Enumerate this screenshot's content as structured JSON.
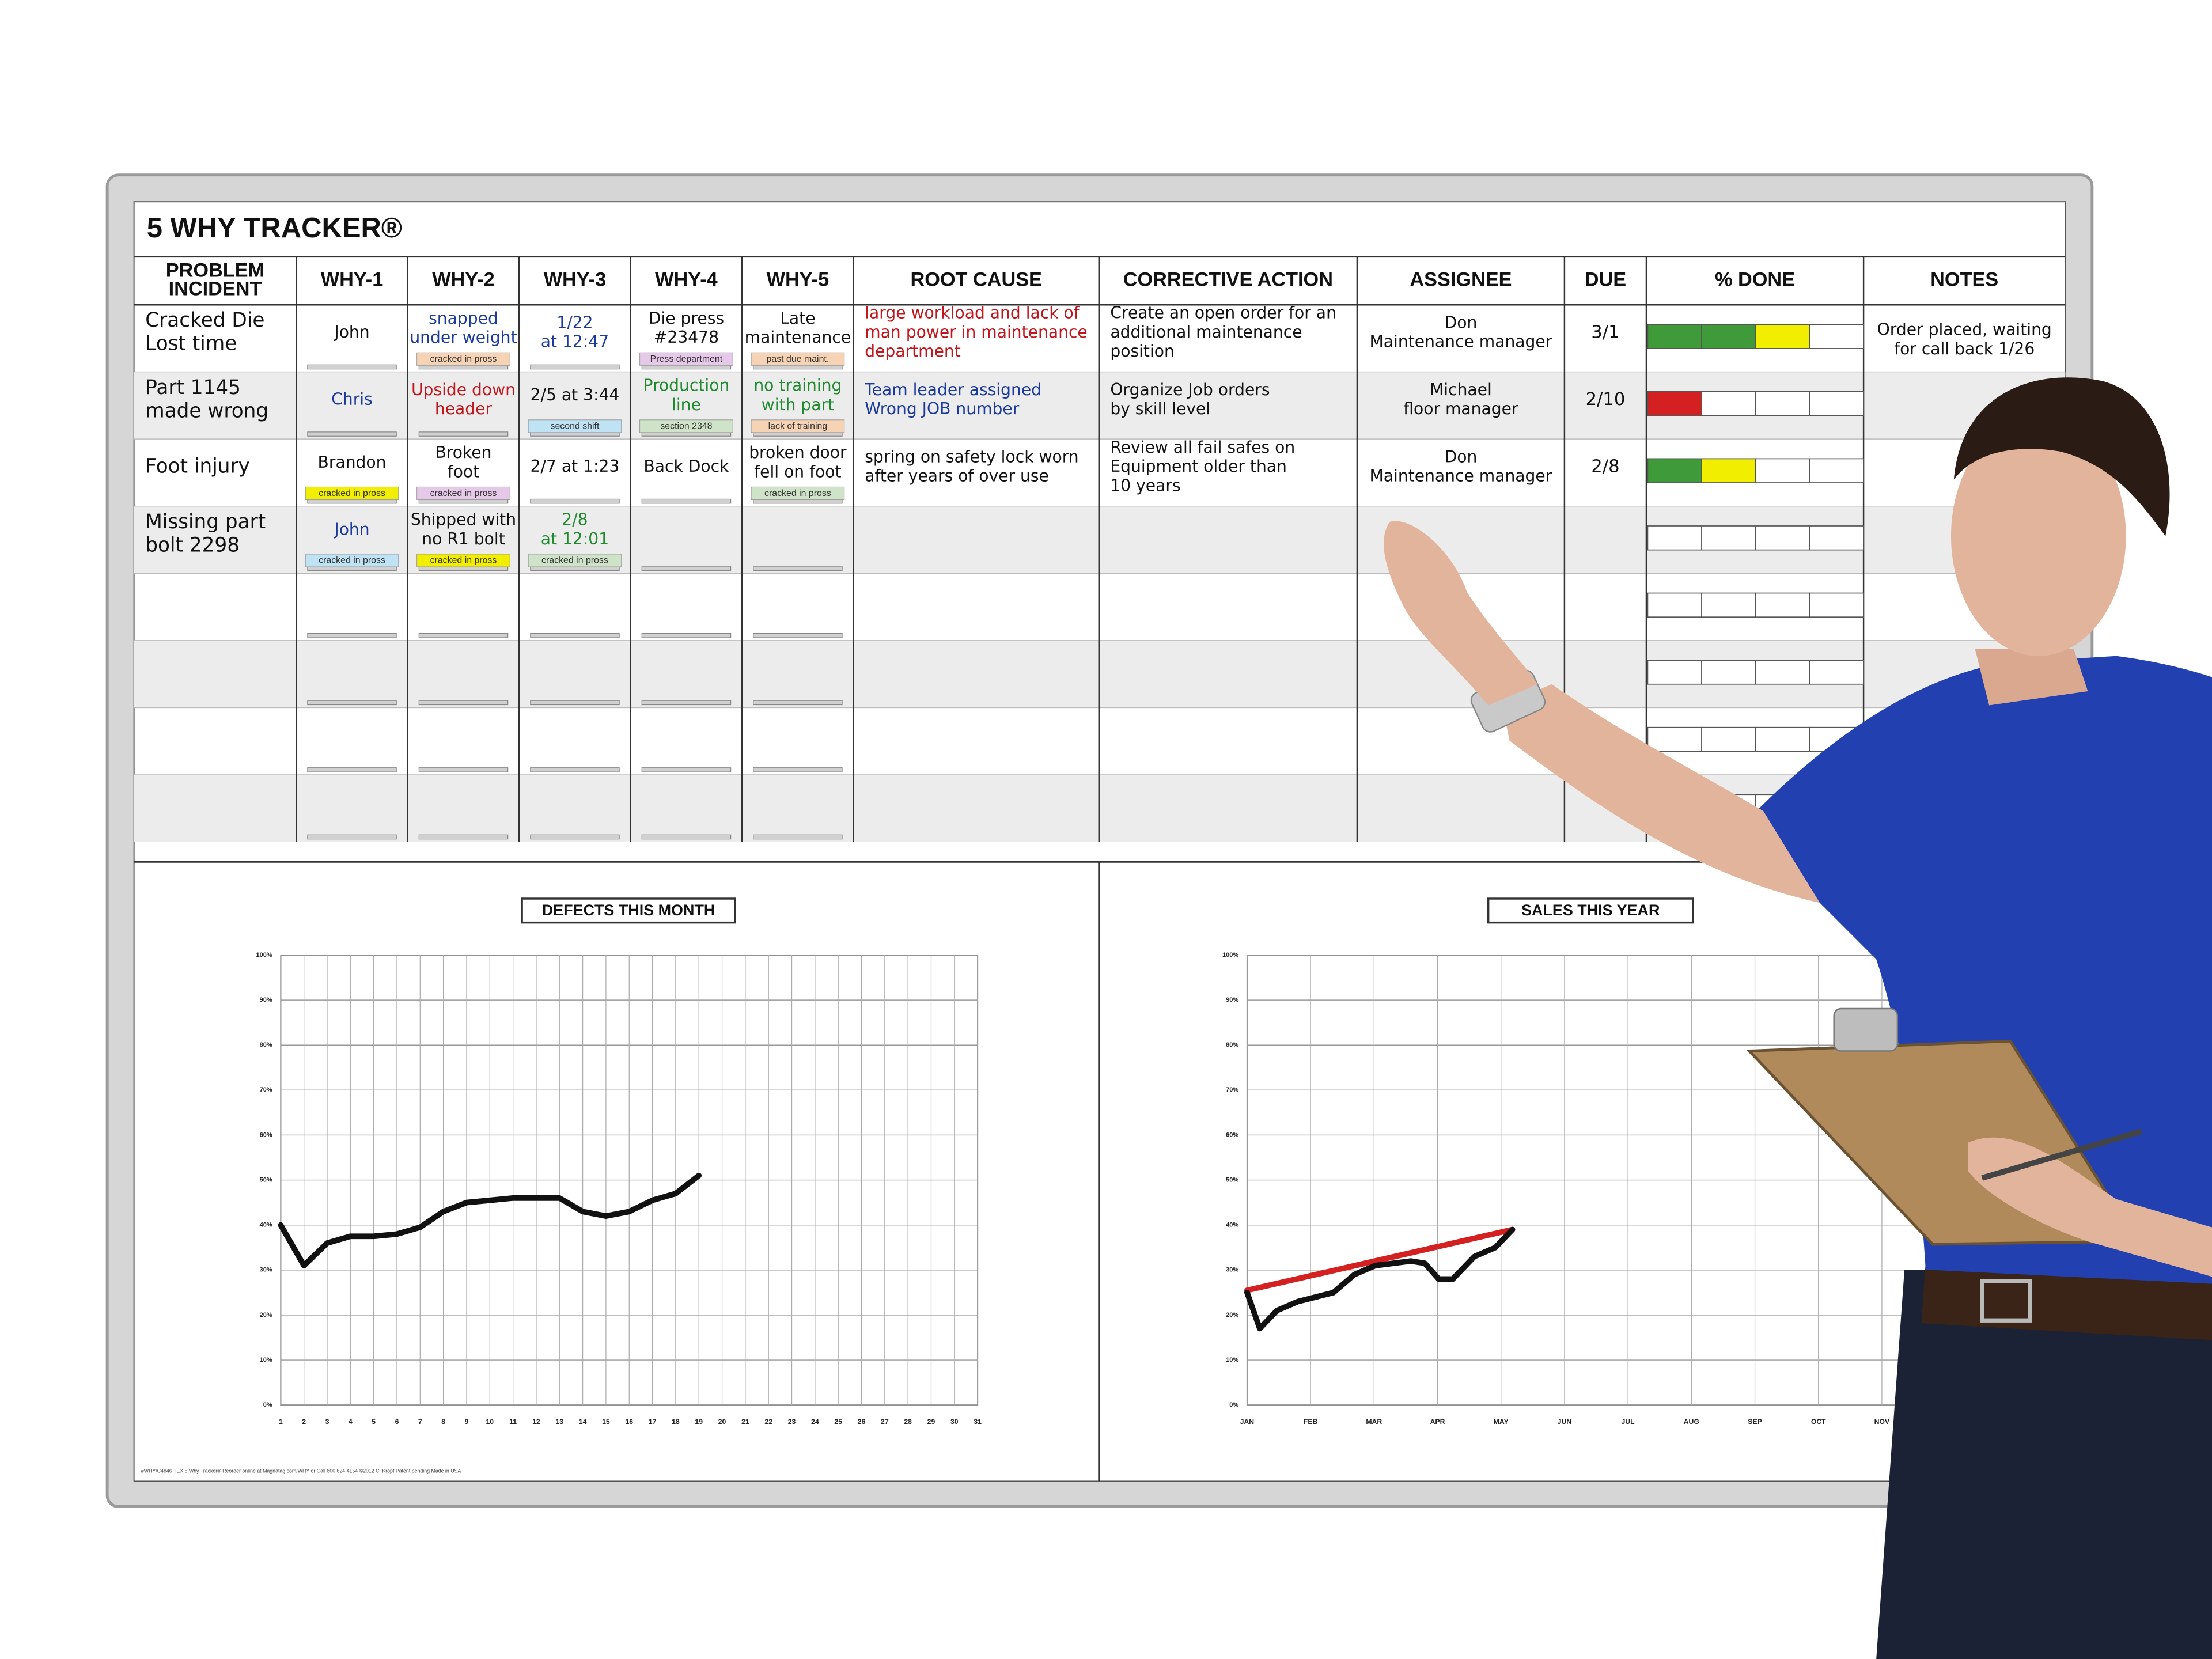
{
  "board": {
    "title": "5 WHY TRACKER®",
    "headers": [
      [
        "PROBLEM",
        "INCIDENT"
      ],
      [
        "WHY-1"
      ],
      [
        "WHY-2"
      ],
      [
        "WHY-3"
      ],
      [
        "WHY-4"
      ],
      [
        "WHY-5"
      ],
      [
        "ROOT CAUSE"
      ],
      [
        "CORRECTIVE ACTION"
      ],
      [
        "ASSIGNEE"
      ],
      [
        "DUE"
      ],
      [
        "% DONE"
      ],
      [
        "NOTES"
      ]
    ],
    "rows": [
      {
        "problem": {
          "lines": [
            "Cracked Die",
            "Lost time"
          ],
          "color": "#111"
        },
        "whys": [
          {
            "lines": [
              "John"
            ],
            "color": "#111"
          },
          {
            "lines": [
              "snapped",
              "under weight"
            ],
            "color": "#1b3a9a",
            "tag": "cracked in pross",
            "tag_color": "#f6d3b5"
          },
          {
            "lines": [
              "1/22",
              "at 12:47"
            ],
            "color": "#1b3a9a"
          },
          {
            "lines": [
              "Die press",
              "#23478"
            ],
            "color": "#111",
            "tag": "Press department",
            "tag_color": "#e6c8e8"
          },
          {
            "lines": [
              "Late",
              "maintenance"
            ],
            "color": "#111",
            "tag": "past due maint.",
            "tag_color": "#f6d3b5"
          }
        ],
        "root_cause": {
          "lines": [
            "large workload and lack of",
            "man power in maintenance",
            "department"
          ],
          "color": "#c0161c"
        },
        "corrective_action": {
          "lines": [
            "Create an open order for an",
            "additional maintenance",
            "position"
          ],
          "color": "#111"
        },
        "assignee": {
          "lines": [
            "Don",
            "Maintenance manager"
          ],
          "color": "#111"
        },
        "due": {
          "lines": [
            "3/1"
          ],
          "color": "#111"
        },
        "done": [
          "#3f9a3a",
          "#3f9a3a",
          "#f2ee00"
        ],
        "notes": {
          "lines": [
            "Order placed, waiting",
            "for call back 1/26"
          ],
          "color": "#111"
        }
      },
      {
        "problem": {
          "lines": [
            "Part 1145",
            "made wrong"
          ],
          "color": "#111"
        },
        "whys": [
          {
            "lines": [
              "Chris"
            ],
            "color": "#1b3a9a"
          },
          {
            "lines": [
              "Upside down",
              "header"
            ],
            "color": "#c0161c"
          },
          {
            "lines": [
              "2/5 at 3:44"
            ],
            "color": "#111",
            "tag": "second shift",
            "tag_color": "#bfe3f5"
          },
          {
            "lines": [
              "Production",
              "line"
            ],
            "color": "#1f8a2e",
            "tag": "section 2348",
            "tag_color": "#cfe3c8"
          },
          {
            "lines": [
              "no training",
              "with part"
            ],
            "color": "#1f8a2e",
            "tag": "lack of training",
            "tag_color": "#f6d3b5"
          }
        ],
        "root_cause": {
          "lines": [
            "Team leader assigned",
            "Wrong JOB number"
          ],
          "color": "#1b3a9a"
        },
        "corrective_action": {
          "lines": [
            "Organize Job orders",
            "by skill level"
          ],
          "color": "#111"
        },
        "assignee": {
          "lines": [
            "Michael",
            "floor manager"
          ],
          "color": "#111"
        },
        "due": {
          "lines": [
            "2/10"
          ],
          "color": "#111"
        },
        "done": [
          "#d42020"
        ]
      },
      {
        "problem": {
          "lines": [
            "Foot injury"
          ],
          "color": "#111"
        },
        "whys": [
          {
            "lines": [
              "Brandon"
            ],
            "color": "#111",
            "tag": "cracked in pross",
            "tag_color": "#f2ee00"
          },
          {
            "lines": [
              "Broken",
              "foot"
            ],
            "color": "#111",
            "tag": "cracked in pross",
            "tag_color": "#e6c8e8"
          },
          {
            "lines": [
              "2/7 at 1:23"
            ],
            "color": "#111"
          },
          {
            "lines": [
              "Back Dock"
            ],
            "color": "#111"
          },
          {
            "lines": [
              "broken door",
              "fell on foot"
            ],
            "color": "#111",
            "tag": "cracked in pross",
            "tag_color": "#cfe3c8"
          }
        ],
        "root_cause": {
          "lines": [
            "spring on safety lock  worn",
            "after years of over use"
          ],
          "color": "#111"
        },
        "corrective_action": {
          "lines": [
            "Review all fail safes on",
            "Equipment older than",
            "10 years"
          ],
          "color": "#111"
        },
        "assignee": {
          "lines": [
            "Don",
            "Maintenance manager"
          ],
          "color": "#111"
        },
        "due": {
          "lines": [
            "2/8"
          ],
          "color": "#111"
        },
        "done": [
          "#3f9a3a",
          "#f2ee00"
        ]
      },
      {
        "problem": {
          "lines": [
            "Missing part",
            "bolt 2298"
          ],
          "color": "#111"
        },
        "whys": [
          {
            "lines": [
              "John"
            ],
            "color": "#1b3a9a",
            "tag": "cracked in pross",
            "tag_color": "#bfe3f5"
          },
          {
            "lines": [
              "Shipped with",
              "no R1 bolt"
            ],
            "color": "#111",
            "tag": "cracked in pross",
            "tag_color": "#f2ee00"
          },
          {
            "lines": [
              "2/8",
              "at 12:01"
            ],
            "color": "#1f8a2e",
            "tag": "cracked in pross",
            "tag_color": "#cfe3c8"
          }
        ]
      }
    ],
    "footer": "#WHY/C4846 TEX 5 Why Tracker® Reorder online at Magnatag.com/WHY or Call 800 624 4154 ©2012 C. Kropf Patent pending Made in USA"
  },
  "chart_data": [
    {
      "type": "line",
      "title": "DEFECTS THIS MONTH",
      "x": [
        1,
        2,
        3,
        4,
        5,
        6,
        7,
        8,
        9,
        10,
        11,
        12,
        13,
        14,
        15,
        16,
        17,
        18,
        19
      ],
      "series": [
        {
          "color": "#111111",
          "values": [
            40,
            31,
            36,
            37.5,
            37.5,
            38,
            39.5,
            43,
            45,
            45.5,
            46,
            46,
            46,
            43,
            42,
            43,
            45.5,
            47,
            51
          ]
        }
      ],
      "xlim": [
        1,
        31
      ],
      "xticks": [
        1,
        2,
        3,
        4,
        5,
        6,
        7,
        8,
        9,
        10,
        11,
        12,
        13,
        14,
        15,
        16,
        17,
        18,
        19,
        20,
        21,
        22,
        23,
        24,
        25,
        26,
        27,
        28,
        29,
        30,
        31
      ],
      "ylim": [
        0,
        100
      ],
      "yticks": [
        {
          "value": 0,
          "label": "0%"
        },
        {
          "value": 10,
          "label": "10%"
        },
        {
          "value": 20,
          "label": "20%"
        },
        {
          "value": 30,
          "label": "30%"
        },
        {
          "value": 40,
          "label": "40%"
        },
        {
          "value": 50,
          "label": "50%"
        },
        {
          "value": 60,
          "label": "60%"
        },
        {
          "value": 70,
          "label": "70%"
        },
        {
          "value": 80,
          "label": "80%"
        },
        {
          "value": 90,
          "label": "90%"
        },
        {
          "value": 100,
          "label": "100%"
        }
      ],
      "grid": true
    },
    {
      "type": "line",
      "title": "SALES THIS YEAR",
      "series": [
        {
          "color": "#d42020",
          "x": [
            0,
            4.18
          ],
          "values": [
            25.5,
            39
          ]
        },
        {
          "color": "#111111",
          "x": [
            0,
            0.2,
            0.47,
            0.8,
            1.36,
            1.69,
            2.02,
            2.58,
            2.8,
            3.02,
            3.24,
            3.58,
            3.91,
            4.18
          ],
          "values": [
            25,
            17,
            21,
            23,
            25,
            29,
            31,
            32,
            31.5,
            28,
            28,
            33,
            35,
            39
          ]
        }
      ],
      "xlim": [
        0,
        11
      ],
      "xticks": [
        {
          "value": 0,
          "label": "JAN"
        },
        {
          "value": 1,
          "label": "FEB"
        },
        {
          "value": 2,
          "label": "MAR"
        },
        {
          "value": 3,
          "label": "APR"
        },
        {
          "value": 4,
          "label": "MAY"
        },
        {
          "value": 5,
          "label": "JUN"
        },
        {
          "value": 6,
          "label": "JUL"
        },
        {
          "value": 7,
          "label": "AUG"
        },
        {
          "value": 8,
          "label": "SEP"
        },
        {
          "value": 9,
          "label": "OCT"
        },
        {
          "value": 10,
          "label": "NOV"
        }
      ],
      "ylim": [
        0,
        100
      ],
      "yticks": [
        {
          "value": 0,
          "label": "0%"
        },
        {
          "value": 10,
          "label": "10%"
        },
        {
          "value": 20,
          "label": "20%"
        },
        {
          "value": 30,
          "label": "30%"
        },
        {
          "value": 40,
          "label": "40%"
        },
        {
          "value": 50,
          "label": "50%"
        },
        {
          "value": 60,
          "label": "60%"
        },
        {
          "value": 70,
          "label": "70%"
        },
        {
          "value": 80,
          "label": "80%"
        },
        {
          "value": 90,
          "label": "90%"
        },
        {
          "value": 100,
          "label": "100%"
        }
      ],
      "grid": true
    }
  ]
}
